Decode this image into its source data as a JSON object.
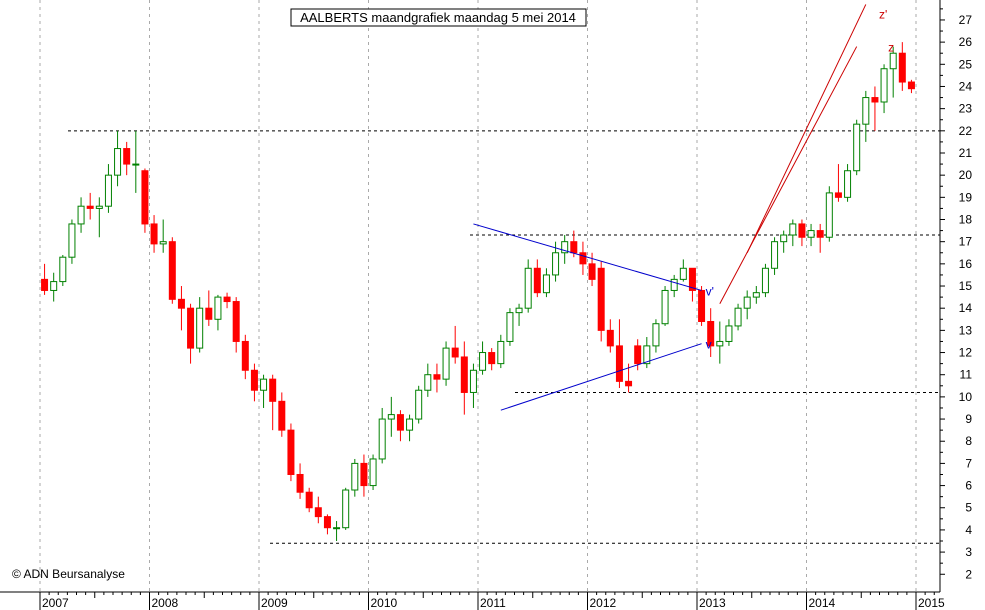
{
  "chart_data": {
    "type": "candlestick",
    "title": "AALBERTS maandgrafiek maandag 5 mei 2014",
    "copyright": "© ADN Beursanalyse",
    "y_ticks": [
      2,
      3,
      4,
      5,
      6,
      7,
      8,
      9,
      10,
      11,
      12,
      13,
      14,
      15,
      16,
      17,
      18,
      19,
      20,
      21,
      22,
      23,
      24,
      25,
      26,
      27
    ],
    "ylim": [
      1.2,
      27.9
    ],
    "x_ticks": [
      "2007",
      "2008",
      "2009",
      "2010",
      "2011",
      "2012",
      "2013",
      "2014",
      "2015"
    ],
    "x_start": "2007-01",
    "grid": true,
    "colors": {
      "up": "#008000",
      "down": "#ff0000",
      "up_fill": "#ffffff",
      "down_fill": "#ff0000",
      "trendline_blue": "#0000cc",
      "trendline_red": "#cc0000",
      "grid": "#aaaaaa"
    },
    "candles": [
      [
        15.3,
        16.0,
        14.6,
        14.8
      ],
      [
        14.8,
        15.6,
        14.3,
        15.2
      ],
      [
        15.2,
        16.4,
        15.0,
        16.3
      ],
      [
        16.3,
        18.0,
        16.0,
        17.8
      ],
      [
        17.8,
        19.0,
        17.4,
        18.6
      ],
      [
        18.6,
        19.2,
        18.0,
        18.5
      ],
      [
        18.5,
        19.0,
        17.2,
        18.6
      ],
      [
        18.6,
        20.5,
        18.3,
        20.0
      ],
      [
        20.0,
        22.0,
        19.5,
        21.2
      ],
      [
        21.2,
        21.5,
        20.0,
        20.5
      ],
      [
        20.5,
        22.0,
        19.2,
        20.5
      ],
      [
        20.2,
        20.3,
        17.4,
        17.8
      ],
      [
        17.8,
        18.2,
        16.5,
        16.9
      ],
      [
        16.9,
        18.0,
        16.5,
        17.0
      ],
      [
        17.0,
        17.2,
        14.2,
        14.4
      ],
      [
        14.4,
        15.0,
        13.0,
        14.0
      ],
      [
        14.0,
        14.2,
        11.5,
        12.2
      ],
      [
        12.2,
        14.5,
        12.0,
        14.0
      ],
      [
        14.0,
        14.8,
        13.2,
        13.5
      ],
      [
        13.5,
        14.6,
        13.0,
        14.5
      ],
      [
        14.5,
        14.7,
        14.0,
        14.3
      ],
      [
        14.3,
        14.5,
        12.0,
        12.5
      ],
      [
        12.5,
        12.8,
        10.8,
        11.2
      ],
      [
        11.2,
        11.5,
        9.8,
        10.3
      ],
      [
        10.3,
        11.0,
        9.5,
        10.8
      ],
      [
        10.8,
        11.0,
        8.5,
        9.8
      ],
      [
        9.8,
        10.2,
        8.2,
        8.5
      ],
      [
        8.5,
        8.8,
        6.2,
        6.5
      ],
      [
        6.5,
        7.0,
        5.4,
        5.7
      ],
      [
        5.7,
        5.9,
        4.8,
        5.0
      ],
      [
        5.0,
        5.5,
        4.3,
        4.6
      ],
      [
        4.6,
        4.7,
        3.8,
        4.1
      ],
      [
        4.1,
        4.4,
        3.5,
        4.1
      ],
      [
        4.1,
        5.9,
        4.0,
        5.8
      ],
      [
        5.8,
        7.2,
        5.5,
        7.0
      ],
      [
        7.0,
        7.4,
        5.5,
        6.0
      ],
      [
        6.0,
        7.4,
        5.8,
        7.2
      ],
      [
        7.2,
        9.5,
        7.0,
        9.0
      ],
      [
        9.0,
        10.0,
        8.2,
        9.2
      ],
      [
        9.2,
        9.4,
        8.0,
        8.5
      ],
      [
        8.5,
        9.2,
        8.0,
        9.0
      ],
      [
        9.0,
        10.5,
        8.8,
        10.3
      ],
      [
        10.3,
        11.5,
        10.0,
        11.0
      ],
      [
        11.0,
        11.5,
        10.2,
        10.8
      ],
      [
        10.8,
        12.5,
        10.5,
        12.2
      ],
      [
        12.2,
        13.2,
        11.5,
        11.8
      ],
      [
        11.8,
        12.5,
        9.2,
        10.2
      ],
      [
        10.2,
        11.5,
        9.5,
        11.2
      ],
      [
        11.2,
        12.5,
        11.0,
        12.0
      ],
      [
        12.0,
        12.2,
        11.2,
        11.5
      ],
      [
        11.5,
        12.8,
        11.3,
        12.5
      ],
      [
        12.5,
        14.0,
        12.3,
        13.8
      ],
      [
        13.8,
        14.2,
        13.2,
        14.0
      ],
      [
        14.0,
        16.2,
        13.8,
        15.8
      ],
      [
        15.8,
        16.2,
        14.5,
        14.7
      ],
      [
        14.7,
        15.8,
        14.5,
        15.5
      ],
      [
        15.5,
        17.0,
        15.2,
        16.5
      ],
      [
        16.5,
        17.3,
        16.0,
        17.0
      ],
      [
        17.0,
        17.5,
        16.3,
        16.5
      ],
      [
        16.5,
        17.0,
        15.5,
        16.0
      ],
      [
        16.0,
        16.5,
        15.0,
        15.3
      ],
      [
        15.8,
        16.1,
        12.5,
        13.0
      ],
      [
        13.0,
        13.5,
        12.0,
        12.3
      ],
      [
        12.3,
        13.5,
        10.4,
        10.7
      ],
      [
        10.7,
        11.5,
        10.2,
        10.5
      ],
      [
        12.3,
        12.6,
        11.2,
        11.5
      ],
      [
        11.5,
        12.7,
        11.3,
        12.3
      ],
      [
        12.3,
        13.5,
        12.0,
        13.3
      ],
      [
        13.3,
        15.0,
        13.2,
        14.8
      ],
      [
        14.8,
        15.5,
        14.5,
        15.3
      ],
      [
        15.3,
        16.2,
        15.2,
        15.8
      ],
      [
        15.8,
        15.8,
        14.3,
        14.8
      ],
      [
        14.8,
        15.0,
        13.2,
        13.4
      ],
      [
        13.4,
        14.0,
        11.8,
        12.3
      ],
      [
        12.3,
        13.4,
        11.5,
        12.5
      ],
      [
        12.5,
        13.5,
        12.3,
        13.2
      ],
      [
        13.2,
        14.2,
        13.0,
        14.0
      ],
      [
        14.0,
        14.8,
        13.5,
        14.5
      ],
      [
        14.5,
        15.0,
        14.2,
        14.7
      ],
      [
        14.7,
        16.0,
        14.5,
        15.8
      ],
      [
        15.8,
        17.2,
        15.5,
        17.0
      ],
      [
        17.0,
        17.5,
        16.5,
        17.3
      ],
      [
        17.3,
        18.0,
        16.8,
        17.8
      ],
      [
        17.8,
        18.0,
        16.8,
        17.2
      ],
      [
        17.2,
        17.8,
        16.8,
        17.5
      ],
      [
        17.5,
        17.8,
        16.5,
        17.2
      ],
      [
        17.2,
        19.5,
        17.0,
        19.2
      ],
      [
        19.2,
        20.5,
        18.8,
        19.0
      ],
      [
        19.0,
        20.5,
        18.8,
        20.2
      ],
      [
        20.2,
        22.5,
        20.0,
        22.3
      ],
      [
        22.3,
        23.8,
        21.5,
        23.5
      ],
      [
        23.5,
        24.0,
        22.0,
        23.3
      ],
      [
        23.3,
        25.0,
        22.8,
        24.8
      ],
      [
        24.8,
        25.8,
        23.5,
        25.5
      ],
      [
        25.5,
        26.0,
        23.8,
        24.2
      ],
      [
        24.2,
        24.3,
        23.7,
        23.9
      ]
    ],
    "horizontal_levels": [
      22.0,
      17.3,
      10.2,
      3.4
    ],
    "trendlines": [
      {
        "color": "blue",
        "from": [
          "2010-12",
          17.8
        ],
        "to": [
          "2013-01",
          14.8
        ]
      },
      {
        "color": "blue",
        "from": [
          "2011-03",
          9.4
        ],
        "to": [
          "2013-01",
          12.4
        ]
      },
      {
        "color": "red",
        "from": [
          "2013-03",
          14.2
        ],
        "to": [
          "2014-06",
          25.8
        ]
      },
      {
        "color": "red",
        "from": [
          "2013-06",
          16.5
        ],
        "to": [
          "2014-07",
          27.7
        ]
      }
    ],
    "annotations": [
      {
        "text": "v'",
        "color": "blue",
        "at": [
          "2013-01",
          14.8
        ]
      },
      {
        "text": "v",
        "color": "blue",
        "at": [
          "2013-01",
          12.4
        ]
      },
      {
        "text": "z'",
        "color": "red",
        "at": [
          "2014-08",
          27.3
        ]
      },
      {
        "text": "z",
        "color": "red",
        "at": [
          "2014-09",
          25.8
        ]
      }
    ]
  }
}
